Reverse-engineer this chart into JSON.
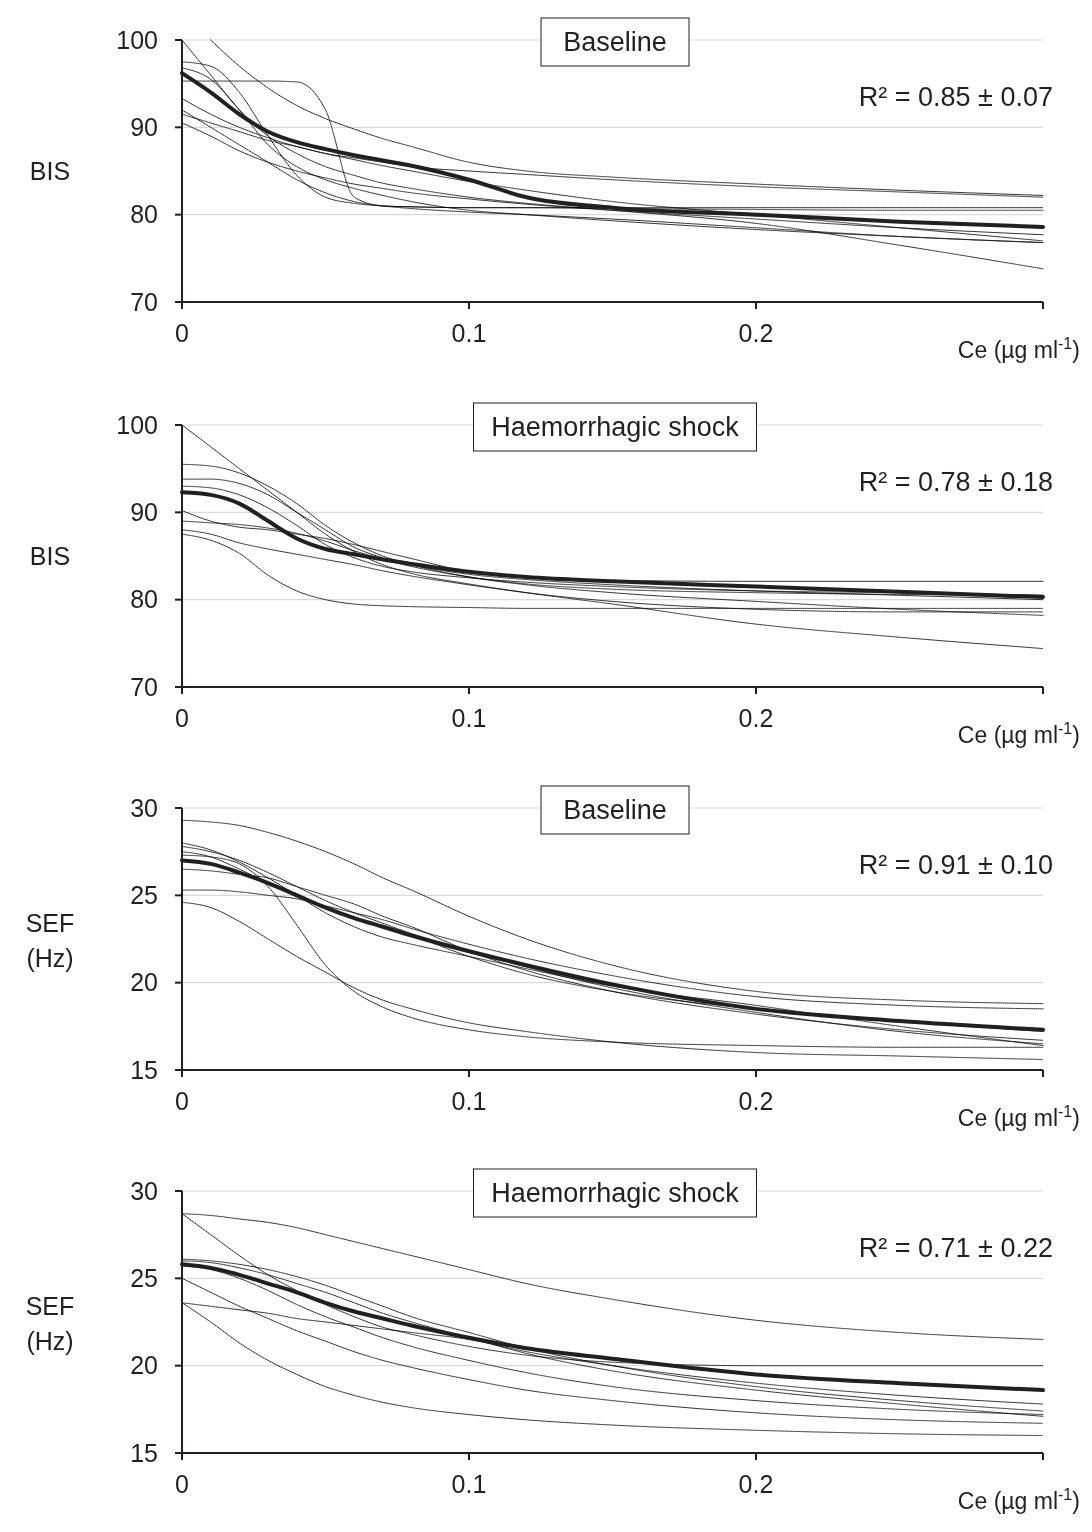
{
  "chart_data": [
    {
      "type": "line",
      "title": "Baseline",
      "ylabel": "BIS",
      "xlabel": "Ce (µg ml$^{-1}$)",
      "annotations": [
        "R² = 0.85 ± 0.07"
      ],
      "x": [
        0,
        0.01,
        0.02,
        0.03,
        0.04,
        0.05,
        0.06,
        0.07,
        0.08,
        0.1,
        0.12,
        0.15,
        0.2,
        0.25,
        0.3
      ],
      "xlim": [
        0,
        0.3
      ],
      "xticks": [
        0,
        0.1,
        0.2
      ],
      "ylim": [
        70,
        100
      ],
      "yticks": [
        70,
        80,
        90,
        100
      ],
      "grid": "y",
      "marker": "none",
      "series": [
        {
          "color": "#000000",
          "line_style": "dotted",
          "values": [
            95.3,
            95.3,
            95.3,
            95.3,
            95.2,
            92,
            82,
            81,
            80.9,
            80.8,
            80.8,
            80.8,
            80.8,
            80.8,
            80.8
          ]
        },
        {
          "color": "#000000",
          "line_style": "dotted",
          "values": [
            null,
            100,
            97,
            94.5,
            92.5,
            91,
            89.8,
            88.7,
            87.8,
            86,
            85,
            84.3,
            83.5,
            82.8,
            82.2
          ]
        },
        {
          "color": "#000000",
          "line_style": "dotted",
          "values": [
            97.5,
            97,
            94,
            89,
            84.5,
            82,
            81.3,
            81,
            80.9,
            80.8,
            80.8,
            80.7,
            80.6,
            80.5,
            80.5
          ]
        },
        {
          "color": "#000000",
          "line_style": "dotted",
          "values": [
            91.5,
            90.5,
            89.5,
            88.5,
            87.8,
            87,
            86.5,
            86,
            85.5,
            85,
            84.6,
            84,
            83.2,
            82.6,
            82
          ]
        },
        {
          "color": "#000000",
          "line_style": "dotted",
          "values": [
            93.3,
            91.5,
            90,
            88.8,
            87.8,
            87,
            86.3,
            85.6,
            85,
            83.8,
            82.8,
            81.5,
            80,
            78.5,
            77
          ]
        },
        {
          "color": "#000000",
          "line_style": "dotted",
          "values": [
            90.5,
            89,
            87.3,
            86,
            85,
            84.2,
            83.5,
            83,
            82.5,
            81.8,
            81.2,
            80.5,
            79.5,
            78.5,
            77.7
          ]
        },
        {
          "color": "#000000",
          "line_style": "dotted",
          "values": [
            100,
            96,
            92,
            89,
            87,
            85.5,
            84.5,
            83.6,
            83,
            82,
            81.3,
            80.5,
            79,
            76.5,
            73.8
          ]
        },
        {
          "color": "#000000",
          "line_style": "dotted",
          "values": [
            96.8,
            95.5,
            92,
            88,
            85.5,
            84,
            83,
            82.2,
            81.5,
            80.5,
            80,
            79.3,
            78.3,
            77.5,
            76.8
          ]
        },
        {
          "color": "#000000",
          "line_style": "dotted",
          "values": [
            92,
            90,
            88,
            86,
            84,
            82.5,
            81.5,
            81,
            80.7,
            80.3,
            80,
            79.5,
            78.5,
            77.5,
            76.8
          ]
        },
        {
          "color": "#231f20",
          "line_style": "solid",
          "values": [
            96.2,
            94,
            91.5,
            89.5,
            88.3,
            87.5,
            86.8,
            86.2,
            85.6,
            84,
            82,
            80.8,
            80,
            79.2,
            78.6
          ]
        }
      ]
    },
    {
      "type": "line",
      "title": "Haemorrhagic shock",
      "ylabel": "BIS",
      "xlabel": "Ce (µg ml$^{-1}$)",
      "annotations": [
        "R² = 0.78 ± 0.18"
      ],
      "x": [
        0,
        0.01,
        0.02,
        0.03,
        0.04,
        0.05,
        0.06,
        0.07,
        0.08,
        0.1,
        0.12,
        0.15,
        0.2,
        0.25,
        0.3
      ],
      "xlim": [
        0,
        0.3
      ],
      "xticks": [
        0,
        0.1,
        0.2
      ],
      "ylim": [
        70,
        100
      ],
      "yticks": [
        70,
        80,
        90,
        100
      ],
      "grid": "y",
      "marker": "none",
      "series": [
        {
          "color": "#000000",
          "line_style": "dotted",
          "values": [
            100,
            97.5,
            95,
            92.5,
            90,
            87.5,
            85.5,
            84,
            83,
            81.8,
            80.8,
            79.5,
            77.2,
            75.7,
            74.4
          ]
        },
        {
          "color": "#000000",
          "line_style": "dotted",
          "values": [
            95.5,
            95.3,
            94.5,
            93,
            91,
            88.5,
            86.5,
            85,
            84,
            82.6,
            81.7,
            80.8,
            79.8,
            78.9,
            78.2
          ]
        },
        {
          "color": "#000000",
          "line_style": "dotted",
          "values": [
            93.8,
            93.8,
            93.3,
            92,
            90,
            88,
            86,
            84.8,
            84,
            82.9,
            82.3,
            81.7,
            81,
            80.5,
            80
          ]
        },
        {
          "color": "#000000",
          "line_style": "dotted",
          "values": [
            93,
            92.8,
            92,
            90.5,
            88.5,
            86.3,
            84.8,
            83.8,
            83.2,
            82.5,
            82,
            81.5,
            81,
            80.8,
            80.5
          ]
        },
        {
          "color": "#000000",
          "line_style": "dotted",
          "values": [
            90.2,
            89,
            88.3,
            88,
            87.5,
            87,
            86.3,
            85.5,
            84.7,
            83.2,
            82.5,
            82.2,
            82.1,
            82.1,
            82.1
          ]
        },
        {
          "color": "#000000",
          "line_style": "dotted",
          "values": [
            89,
            88.8,
            88.6,
            88.2,
            87.6,
            86.7,
            85.6,
            84.6,
            83.8,
            82.6,
            81.8,
            81.2,
            80.8,
            80.6,
            80.5
          ]
        },
        {
          "color": "#000000",
          "line_style": "dotted",
          "values": [
            88,
            87.5,
            86.5,
            85.8,
            85.2,
            84.6,
            84,
            83.3,
            82.7,
            81.7,
            80.8,
            79.8,
            78.9,
            78.6,
            78.6
          ]
        },
        {
          "color": "#000000",
          "line_style": "dotted",
          "values": [
            87.5,
            86.8,
            85.3,
            82.8,
            81,
            80,
            79.5,
            79.3,
            79.2,
            79.1,
            79,
            79,
            79,
            79,
            79
          ]
        },
        {
          "color": "#231f20",
          "line_style": "solid",
          "values": [
            92.3,
            92,
            91,
            89,
            87,
            85.8,
            85.2,
            84.6,
            84.1,
            83.2,
            82.6,
            82.1,
            81.5,
            80.9,
            80.3
          ]
        }
      ]
    },
    {
      "type": "line",
      "title": "Baseline",
      "ylabel": "SEF (Hz)",
      "xlabel": "Ce (µg ml$^{-1}$)",
      "annotations": [
        "R² = 0.91 ± 0.10"
      ],
      "x": [
        0,
        0.01,
        0.02,
        0.03,
        0.04,
        0.05,
        0.06,
        0.07,
        0.08,
        0.1,
        0.12,
        0.15,
        0.2,
        0.25,
        0.3
      ],
      "xlim": [
        0,
        0.3
      ],
      "xticks": [
        0,
        0.1,
        0.2
      ],
      "ylim": [
        15,
        30
      ],
      "yticks": [
        15,
        20,
        25,
        30
      ],
      "grid": "y",
      "marker": "none",
      "series": [
        {
          "color": "#000000",
          "line_style": "dotted",
          "values": [
            29.3,
            29.2,
            29,
            28.6,
            28.1,
            27.5,
            26.8,
            26,
            25.3,
            23.8,
            22.5,
            21,
            19.5,
            19,
            18.8
          ]
        },
        {
          "color": "#000000",
          "line_style": "dotted",
          "values": [
            27.8,
            27.5,
            27,
            26.3,
            25.5,
            24.7,
            24,
            23.4,
            22.8,
            21.8,
            20.9,
            19.7,
            18.3,
            17.2,
            16.5
          ]
        },
        {
          "color": "#000000",
          "line_style": "dotted",
          "values": [
            27.3,
            27.2,
            26.8,
            25.5,
            23.3,
            21,
            19.5,
            18.6,
            18,
            17.3,
            16.9,
            16.6,
            16.4,
            16.3,
            16.3
          ]
        },
        {
          "color": "#000000",
          "line_style": "dotted",
          "values": [
            26.5,
            26.4,
            26.2,
            26,
            25.5,
            25,
            24.5,
            23.8,
            23.2,
            21.8,
            20.7,
            19.5,
            18.2,
            17.3,
            16.7
          ]
        },
        {
          "color": "#000000",
          "line_style": "dotted",
          "values": [
            25.3,
            25.3,
            25.2,
            25,
            24.8,
            24.4,
            24,
            23.6,
            23.1,
            22.2,
            21.4,
            20.4,
            19.2,
            18.7,
            18.5
          ]
        },
        {
          "color": "#000000",
          "line_style": "dotted",
          "values": [
            24.6,
            24.3,
            23.5,
            22.5,
            21.5,
            20.6,
            19.7,
            19,
            18.5,
            17.7,
            17.2,
            16.6,
            16,
            15.8,
            15.6
          ]
        },
        {
          "color": "#000000",
          "line_style": "dotted",
          "values": [
            27.5,
            27.2,
            26.5,
            25.7,
            25,
            24.3,
            23.7,
            23.2,
            22.7,
            21.5,
            20.5,
            19.5,
            18.5,
            17.8,
            17.2
          ]
        },
        {
          "color": "#000000",
          "line_style": "dotted",
          "values": [
            28,
            27.6,
            26.9,
            26,
            25,
            24,
            23.2,
            22.6,
            22.2,
            21.5,
            20.8,
            19.8,
            18.7,
            17.5,
            16.4
          ]
        },
        {
          "color": "#231f20",
          "line_style": "solid",
          "values": [
            27,
            26.8,
            26.3,
            25.7,
            25,
            24.3,
            23.7,
            23.2,
            22.7,
            21.8,
            21,
            19.9,
            18.5,
            17.8,
            17.3
          ]
        }
      ]
    },
    {
      "type": "line",
      "title": "Haemorrhagic shock",
      "ylabel": "SEF (Hz)",
      "xlabel": "Ce (µg ml$^{-1}$)",
      "annotations": [
        "R² = 0.71 ± 0.22"
      ],
      "x": [
        0,
        0.01,
        0.02,
        0.03,
        0.04,
        0.05,
        0.06,
        0.07,
        0.08,
        0.1,
        0.12,
        0.15,
        0.2,
        0.25,
        0.3
      ],
      "xlim": [
        0,
        0.3
      ],
      "xticks": [
        0,
        0.1,
        0.2
      ],
      "ylim": [
        15,
        30
      ],
      "yticks": [
        15,
        20,
        25,
        30
      ],
      "grid": "y",
      "marker": "none",
      "series": [
        {
          "color": "#000000",
          "line_style": "dotted",
          "values": [
            28.7,
            28.6,
            28.4,
            28.2,
            27.9,
            27.5,
            27.1,
            26.7,
            26.3,
            25.5,
            24.7,
            23.8,
            22.6,
            21.9,
            21.5
          ]
        },
        {
          "color": "#000000",
          "line_style": "dotted",
          "values": [
            28.7,
            27.5,
            26.3,
            25.2,
            24.3,
            23.5,
            22.8,
            22.2,
            21.8,
            21.1,
            20.6,
            20.2,
            20,
            20,
            20
          ]
        },
        {
          "color": "#000000",
          "line_style": "dotted",
          "values": [
            26.1,
            26,
            25.8,
            25.5,
            25.1,
            24.6,
            24,
            23.4,
            22.8,
            21.9,
            21,
            20,
            18.8,
            18,
            17.4
          ]
        },
        {
          "color": "#000000",
          "line_style": "dotted",
          "values": [
            26,
            25.9,
            25.6,
            25.2,
            24.7,
            24.2,
            23.6,
            23,
            22.5,
            21.6,
            20.7,
            19.7,
            18.6,
            17.8,
            17.1
          ]
        },
        {
          "color": "#000000",
          "line_style": "dotted",
          "values": [
            25.7,
            25.5,
            25,
            24.3,
            23.5,
            22.8,
            22.2,
            21.6,
            21.1,
            20.3,
            19.6,
            18.8,
            18,
            17.5,
            17.2
          ]
        },
        {
          "color": "#000000",
          "line_style": "dotted",
          "values": [
            25,
            24.2,
            23.4,
            22.7,
            22,
            21.4,
            20.8,
            20.3,
            19.9,
            19.2,
            18.6,
            18,
            17.3,
            16.9,
            16.7
          ]
        },
        {
          "color": "#000000",
          "line_style": "dotted",
          "values": [
            23.6,
            23.4,
            23.2,
            23,
            22.7,
            22.5,
            22.3,
            22.1,
            21.9,
            21.5,
            20.8,
            20,
            19,
            18.3,
            17.8
          ]
        },
        {
          "color": "#000000",
          "line_style": "dotted",
          "values": [
            23.6,
            22.5,
            21.3,
            20.3,
            19.5,
            18.8,
            18.3,
            17.9,
            17.6,
            17.2,
            16.9,
            16.6,
            16.3,
            16.1,
            16
          ]
        },
        {
          "color": "#231f20",
          "line_style": "solid",
          "values": [
            25.8,
            25.6,
            25.2,
            24.7,
            24.2,
            23.6,
            23.1,
            22.7,
            22.3,
            21.6,
            21,
            20.4,
            19.5,
            19,
            18.6
          ]
        }
      ]
    }
  ]
}
